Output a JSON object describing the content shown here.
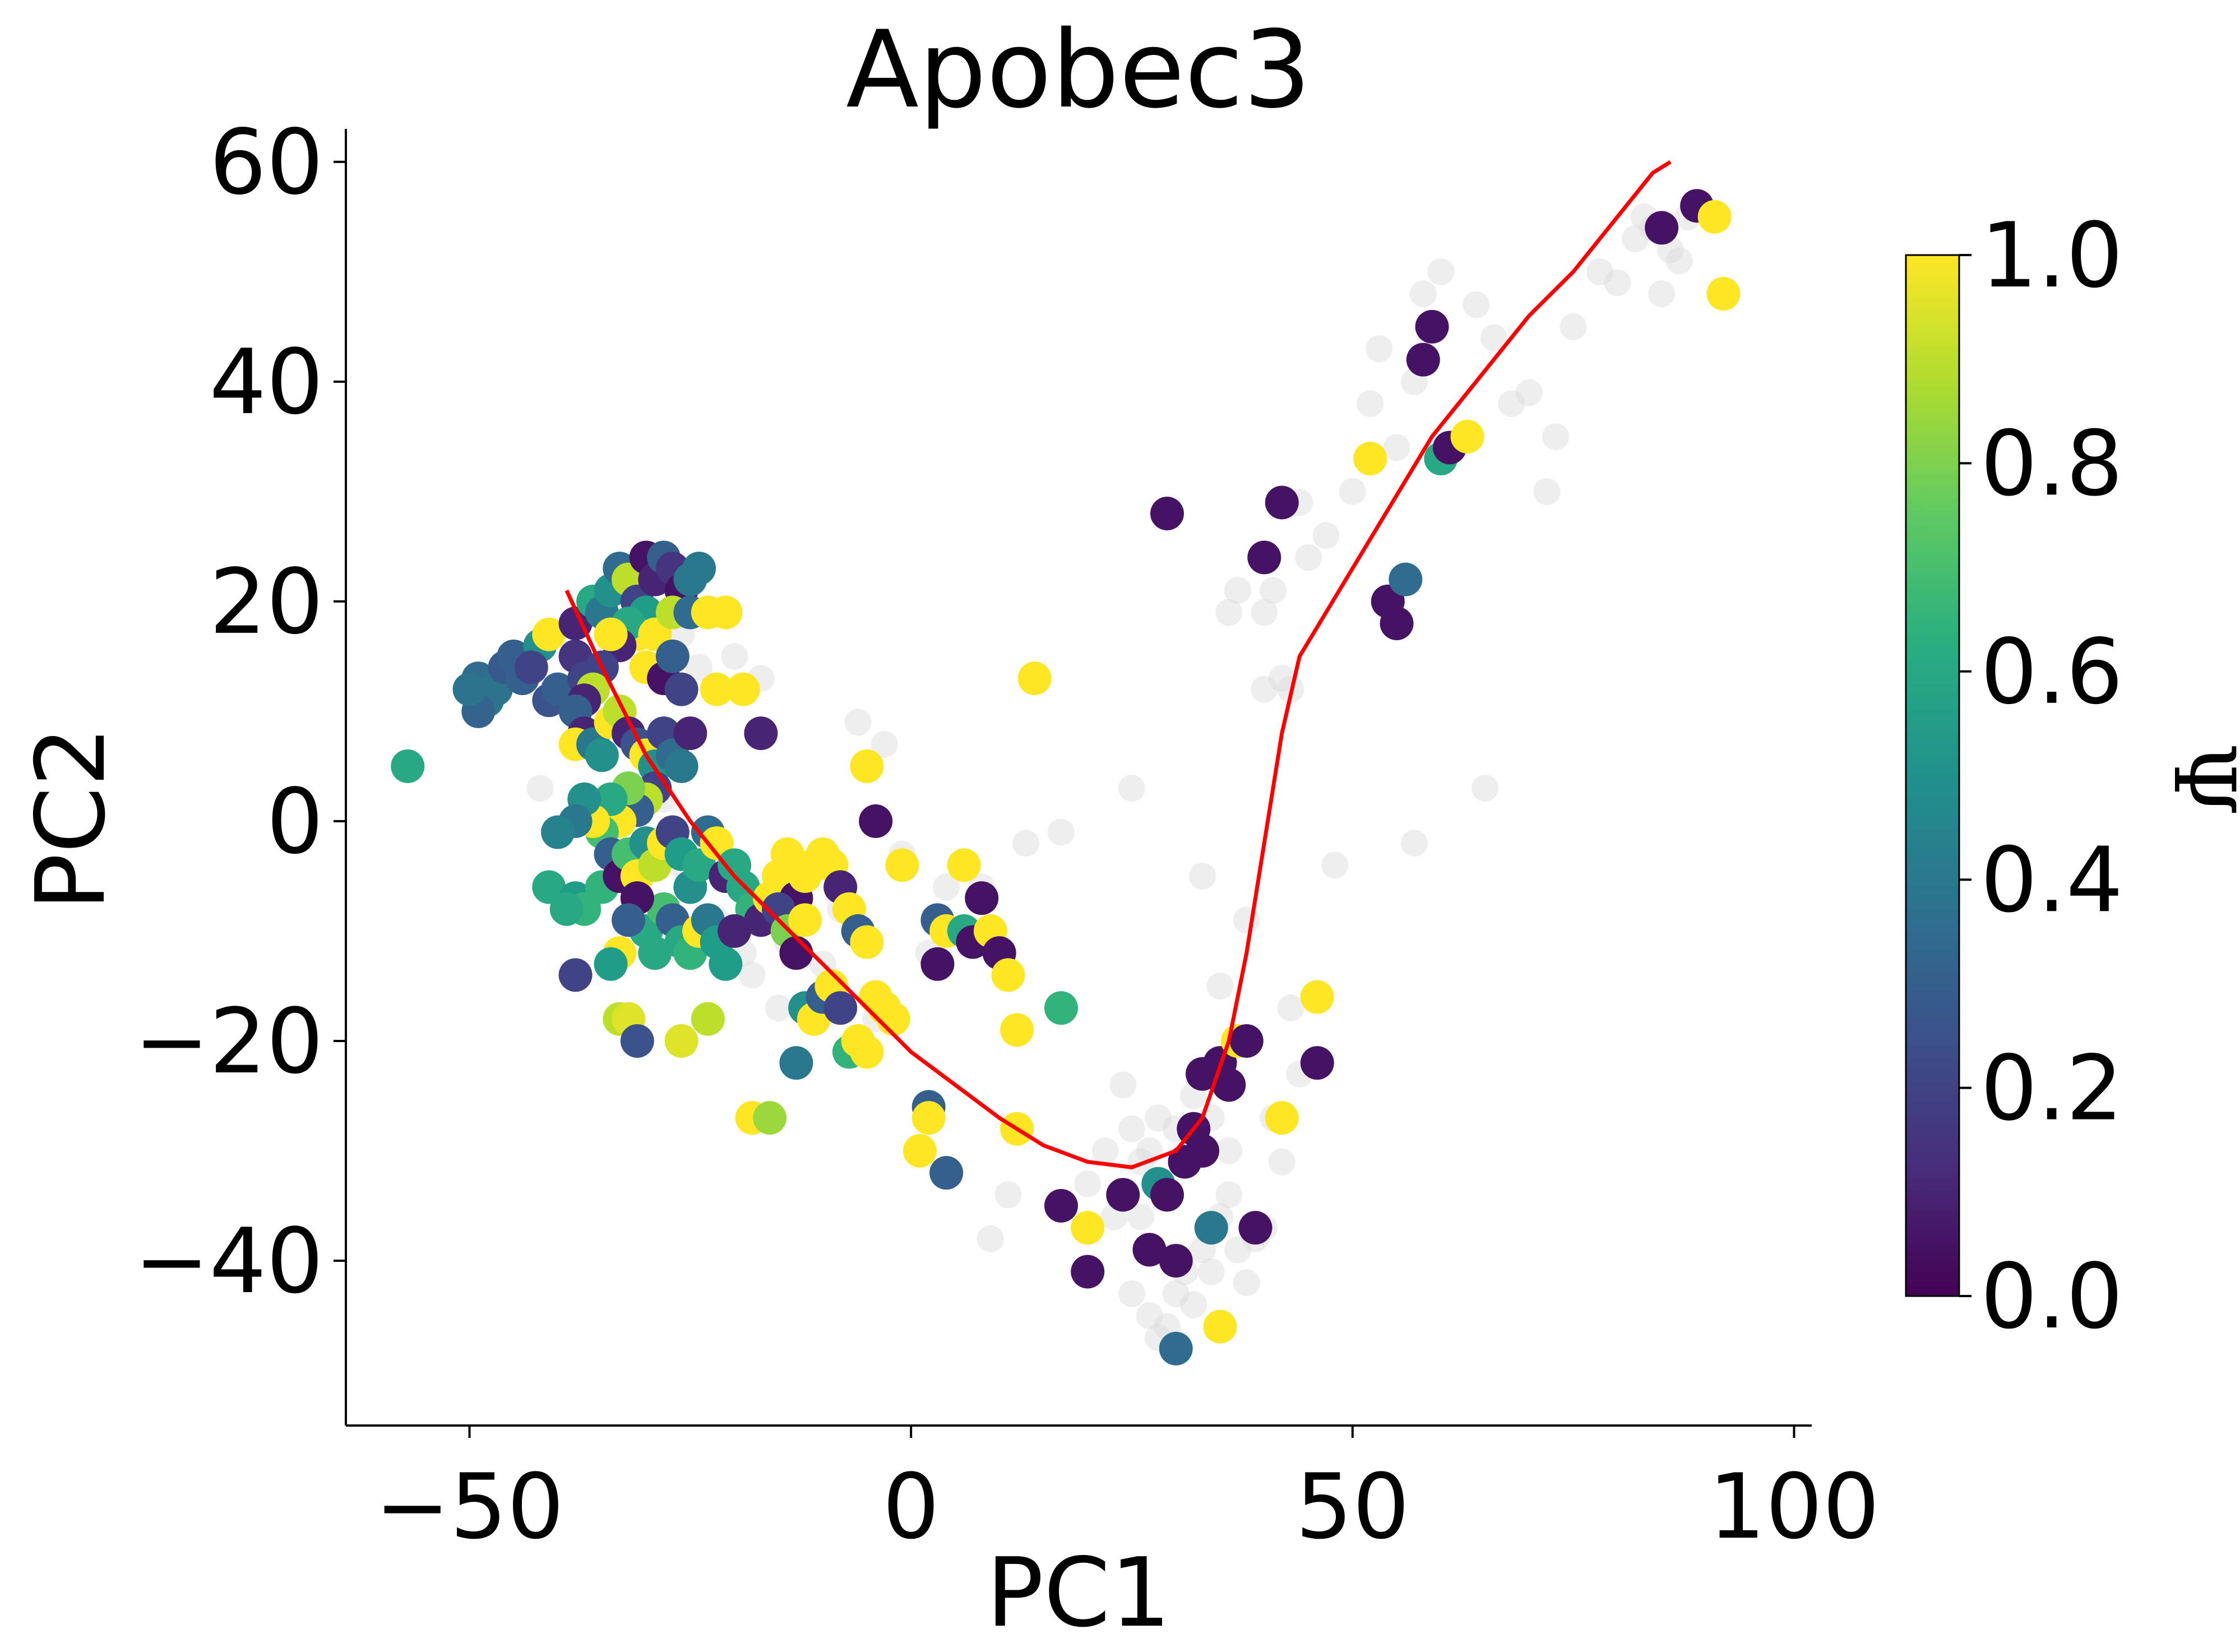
{
  "chart_data": {
    "type": "scatter",
    "title": "Apobec3",
    "xlabel": "PC1",
    "ylabel": "PC2",
    "xlim": [
      -64,
      102
    ],
    "ylim": [
      -55,
      63
    ],
    "xticks": [
      -50,
      0,
      50,
      100
    ],
    "xtick_labels": [
      "−50",
      "0",
      "50",
      "100"
    ],
    "yticks": [
      -40,
      -20,
      0,
      20,
      40,
      60
    ],
    "ytick_labels": [
      "−40",
      "−20",
      "0",
      "20",
      "40",
      "60"
    ],
    "grid": false,
    "colormap": "viridis",
    "colorbar": {
      "label": "Ψ",
      "range": [
        0,
        1
      ],
      "ticks": [
        0.0,
        0.2,
        0.4,
        0.6,
        0.8,
        1.0
      ],
      "tick_labels": [
        "0.0",
        "0.2",
        "0.4",
        "0.6",
        "0.8",
        "1.0"
      ]
    },
    "background_points_color": "#d9d9d9",
    "background_points": [
      [
        -34,
        16
      ],
      [
        -26,
        17
      ],
      [
        -24,
        14
      ],
      [
        -20,
        15
      ],
      [
        -17,
        13
      ],
      [
        -6,
        9
      ],
      [
        -3,
        7
      ],
      [
        -26,
        -4
      ],
      [
        -22,
        -9
      ],
      [
        -18,
        -14
      ],
      [
        -14,
        -11
      ],
      [
        -10,
        -13
      ],
      [
        -4,
        -18
      ],
      [
        2,
        -12
      ],
      [
        4,
        -6
      ],
      [
        8,
        -6
      ],
      [
        13,
        -2
      ],
      [
        17,
        -1
      ],
      [
        25,
        3
      ],
      [
        33,
        -5
      ],
      [
        35,
        -15
      ],
      [
        38,
        -9
      ],
      [
        41,
        -27
      ],
      [
        43,
        -17
      ],
      [
        48,
        -4
      ],
      [
        57,
        -2
      ],
      [
        65,
        3
      ],
      [
        36,
        19
      ],
      [
        37,
        21
      ],
      [
        40,
        19
      ],
      [
        41,
        21
      ],
      [
        42,
        13
      ],
      [
        43,
        12
      ],
      [
        40,
        12
      ],
      [
        45,
        24
      ],
      [
        47,
        26
      ],
      [
        44,
        29
      ],
      [
        50,
        30
      ],
      [
        52,
        38
      ],
      [
        53,
        43
      ],
      [
        55,
        34
      ],
      [
        57,
        40
      ],
      [
        58,
        48
      ],
      [
        60,
        50
      ],
      [
        64,
        47
      ],
      [
        66,
        44
      ],
      [
        68,
        38
      ],
      [
        70,
        39
      ],
      [
        72,
        30
      ],
      [
        73,
        35
      ],
      [
        75,
        45
      ],
      [
        78,
        50
      ],
      [
        80,
        49
      ],
      [
        82,
        53
      ],
      [
        83,
        55
      ],
      [
        84,
        54
      ],
      [
        85,
        48
      ],
      [
        86,
        52
      ],
      [
        87,
        51
      ],
      [
        88,
        55
      ],
      [
        24,
        -24
      ],
      [
        25,
        -28
      ],
      [
        26,
        -31
      ],
      [
        27,
        -30
      ],
      [
        28,
        -27
      ],
      [
        23,
        -36
      ],
      [
        25,
        -43
      ],
      [
        27,
        -45
      ],
      [
        28,
        -47
      ],
      [
        29,
        -46
      ],
      [
        30,
        -43
      ],
      [
        31,
        -41
      ],
      [
        32,
        -44
      ],
      [
        33,
        -39
      ],
      [
        34,
        -41
      ],
      [
        35,
        -36
      ],
      [
        36,
        -34
      ],
      [
        37,
        -39
      ],
      [
        38,
        -42
      ],
      [
        39,
        -38
      ],
      [
        36,
        -30
      ],
      [
        34,
        -27
      ],
      [
        32,
        -25
      ],
      [
        30,
        -28
      ],
      [
        29,
        -34
      ],
      [
        26,
        -36
      ],
      [
        40,
        -37
      ],
      [
        42,
        -31
      ],
      [
        44,
        -23
      ],
      [
        22,
        -30
      ],
      [
        20,
        -33
      ],
      [
        9,
        -38
      ],
      [
        11,
        -34
      ],
      [
        -15,
        -17
      ],
      [
        -19,
        -12
      ],
      [
        -8,
        -8
      ],
      [
        -1,
        -3
      ],
      [
        -40,
        -1
      ],
      [
        -42,
        3
      ],
      [
        -28,
        2
      ]
    ],
    "points": [
      [
        -57,
        5,
        0.6
      ],
      [
        -49,
        13,
        0.35
      ],
      [
        -48,
        11,
        0.4
      ],
      [
        -47,
        12,
        0.38
      ],
      [
        -49,
        10,
        0.32
      ],
      [
        -50,
        12,
        0.38
      ],
      [
        -46,
        14,
        0.28
      ],
      [
        -45,
        15,
        0.3
      ],
      [
        -44,
        13,
        0.3
      ],
      [
        -42,
        16,
        0.5
      ],
      [
        -41,
        17,
        1.0
      ],
      [
        -43,
        14,
        0.2
      ],
      [
        -41,
        11,
        0.25
      ],
      [
        -40,
        12,
        0.3
      ],
      [
        -38,
        15,
        0.15
      ],
      [
        -37,
        13,
        0.2
      ],
      [
        -38,
        18,
        0.1
      ],
      [
        -36,
        20,
        0.6
      ],
      [
        -35,
        19,
        0.4
      ],
      [
        -34,
        21,
        0.5
      ],
      [
        -33,
        23,
        0.35
      ],
      [
        -32,
        22,
        0.9
      ],
      [
        -31,
        20,
        0.2
      ],
      [
        -30,
        24,
        0.05
      ],
      [
        -29,
        22,
        0.1
      ],
      [
        -28,
        24,
        0.3
      ],
      [
        -27,
        23,
        0.15
      ],
      [
        -26,
        21,
        0.05
      ],
      [
        -25,
        22,
        0.4
      ],
      [
        -24,
        23,
        0.4
      ],
      [
        -30,
        19,
        0.55
      ],
      [
        -31,
        17,
        1.0
      ],
      [
        -32,
        18,
        0.6
      ],
      [
        -33,
        16,
        0.1
      ],
      [
        -34,
        17,
        1.0
      ],
      [
        -35,
        14,
        0.2
      ],
      [
        -36,
        12,
        0.9
      ],
      [
        -37,
        11,
        0.1
      ],
      [
        -38,
        10,
        0.3
      ],
      [
        -37,
        8,
        0.1
      ],
      [
        -38,
        7,
        1.0
      ],
      [
        -36,
        7,
        0.4
      ],
      [
        -35,
        6,
        0.5
      ],
      [
        -34,
        9,
        1.0
      ],
      [
        -33,
        10,
        0.9
      ],
      [
        -32,
        8,
        0.1
      ],
      [
        -31,
        7,
        0.25
      ],
      [
        -30,
        6,
        1.0
      ],
      [
        -29,
        5,
        0.5
      ],
      [
        -28,
        8,
        0.2
      ],
      [
        -27,
        6,
        0.35
      ],
      [
        -26,
        5,
        0.4
      ],
      [
        -25,
        8,
        0.1
      ],
      [
        -29,
        3,
        0.2
      ],
      [
        -30,
        2,
        0.9
      ],
      [
        -31,
        1,
        0.3
      ],
      [
        -32,
        3,
        0.8
      ],
      [
        -33,
        0,
        1.0
      ],
      [
        -34,
        2,
        0.6
      ],
      [
        -35,
        -1,
        0.7
      ],
      [
        -36,
        0,
        1.0
      ],
      [
        -37,
        2,
        0.5
      ],
      [
        -38,
        0,
        0.4
      ],
      [
        -40,
        -1,
        0.45
      ],
      [
        -41,
        -6,
        0.6
      ],
      [
        -38,
        -7,
        0.55
      ],
      [
        -37,
        -8,
        0.65
      ],
      [
        -35,
        -6,
        0.65
      ],
      [
        -34,
        -3,
        0.3
      ],
      [
        -33,
        -5,
        0.05
      ],
      [
        -32,
        -3,
        0.7
      ],
      [
        -31,
        -5,
        1.0
      ],
      [
        -30,
        -2,
        0.5
      ],
      [
        -29,
        -4,
        0.9
      ],
      [
        -28,
        -2,
        1.0
      ],
      [
        -27,
        -1,
        0.2
      ],
      [
        -26,
        -3,
        0.55
      ],
      [
        -25,
        -6,
        0.5
      ],
      [
        -24,
        -4,
        0.6
      ],
      [
        -23,
        -1,
        0.35
      ],
      [
        -22,
        -2,
        1.0
      ],
      [
        -21,
        -5,
        0.1
      ],
      [
        -20,
        -4,
        0.6
      ],
      [
        -19,
        -6,
        0.6
      ],
      [
        -18,
        -8,
        0.65
      ],
      [
        -17,
        -9,
        0.1
      ],
      [
        -16,
        -7,
        1.0
      ],
      [
        -15,
        -5,
        1.0
      ],
      [
        -14,
        -3,
        1.0
      ],
      [
        -13,
        -7,
        0.05
      ],
      [
        -12,
        -5,
        1.0
      ],
      [
        -11,
        -4,
        1.0
      ],
      [
        -10,
        -3,
        1.0
      ],
      [
        -9,
        -4,
        1.0
      ],
      [
        -8,
        -6,
        0.1
      ],
      [
        -7,
        -8,
        1.0
      ],
      [
        -30,
        -10,
        0.6
      ],
      [
        -29,
        -12,
        0.6
      ],
      [
        -28,
        -8,
        0.7
      ],
      [
        -27,
        -9,
        0.3
      ],
      [
        -26,
        -11,
        0.6
      ],
      [
        -25,
        -12,
        0.65
      ],
      [
        -24,
        -10,
        1.0
      ],
      [
        -23,
        -9,
        0.4
      ],
      [
        -22,
        -11,
        0.55
      ],
      [
        -21,
        -13,
        0.55
      ],
      [
        -20,
        -10,
        0.1
      ],
      [
        -31,
        -7,
        0.05
      ],
      [
        -32,
        -9,
        0.3
      ],
      [
        -33,
        -12,
        1.0
      ],
      [
        -34,
        -13,
        0.55
      ],
      [
        -39,
        -8,
        0.6
      ],
      [
        -38,
        -14,
        0.2
      ],
      [
        -33,
        -18,
        0.9
      ],
      [
        -32,
        -18,
        0.95
      ],
      [
        -31,
        -20,
        0.25
      ],
      [
        -26,
        -20,
        0.95
      ],
      [
        -23,
        -18,
        0.9
      ],
      [
        -18,
        -27,
        1.0
      ],
      [
        -16,
        -27,
        0.85
      ],
      [
        -13,
        -22,
        0.4
      ],
      [
        -12,
        -17,
        0.5
      ],
      [
        -11,
        -18,
        1.0
      ],
      [
        -10,
        -16,
        0.3
      ],
      [
        -9,
        -15,
        1.0
      ],
      [
        -8,
        -17,
        0.2
      ],
      [
        -7,
        -21,
        0.65
      ],
      [
        -6,
        -20,
        1.0
      ],
      [
        -5,
        -21,
        1.0
      ],
      [
        -4,
        -16,
        1.0
      ],
      [
        -3,
        -17,
        1.0
      ],
      [
        -2,
        -18,
        1.0
      ],
      [
        -15,
        -8,
        0.2
      ],
      [
        -14,
        -10,
        0.8
      ],
      [
        -13,
        -12,
        0.05
      ],
      [
        -12,
        -9,
        1.0
      ],
      [
        -6,
        -10,
        0.3
      ],
      [
        -5,
        -11,
        1.0
      ],
      [
        3,
        -9,
        0.3
      ],
      [
        4,
        -10,
        1.0
      ],
      [
        6,
        -10,
        0.6
      ],
      [
        7,
        -11,
        0.05
      ],
      [
        8,
        -7,
        0.05
      ],
      [
        9,
        -10,
        1.0
      ],
      [
        10,
        -12,
        0.05
      ],
      [
        3,
        -13,
        0.05
      ],
      [
        6,
        -4,
        1.0
      ],
      [
        11,
        -14,
        1.0
      ],
      [
        12,
        -19,
        1.0
      ],
      [
        12,
        -28,
        1.0
      ],
      [
        2,
        -26,
        0.3
      ],
      [
        2,
        -27,
        1.0
      ],
      [
        1,
        -30,
        1.0
      ],
      [
        4,
        -32,
        0.3
      ],
      [
        17,
        -17,
        0.65
      ],
      [
        17,
        -35,
        0.05
      ],
      [
        -19,
        12,
        1.0
      ],
      [
        -21,
        19,
        1.0
      ],
      [
        -17,
        8,
        0.1
      ],
      [
        -5,
        5,
        1.0
      ],
      [
        -4,
        0,
        0.05
      ],
      [
        -1,
        -4,
        1.0
      ],
      [
        14,
        13,
        1.0
      ],
      [
        20,
        -37,
        1.0
      ],
      [
        20,
        -41,
        0.05
      ],
      [
        24,
        -34,
        0.05
      ],
      [
        27,
        -39,
        0.05
      ],
      [
        28,
        -33,
        0.5
      ],
      [
        29,
        -34,
        0.05
      ],
      [
        30,
        -40,
        0.05
      ],
      [
        31,
        -31,
        0.05
      ],
      [
        32,
        -28,
        0.05
      ],
      [
        33,
        -30,
        0.05
      ],
      [
        30,
        -48,
        0.35
      ],
      [
        34,
        -37,
        0.4
      ],
      [
        35,
        -46,
        1.0
      ],
      [
        33,
        -23,
        0.05
      ],
      [
        35,
        -22,
        0.05
      ],
      [
        36,
        -24,
        0.05
      ],
      [
        37,
        -20,
        1.0
      ],
      [
        38,
        -20,
        0.05
      ],
      [
        39,
        -37,
        0.05
      ],
      [
        42,
        -27,
        1.0
      ],
      [
        46,
        -16,
        1.0
      ],
      [
        46,
        -22,
        0.05
      ],
      [
        29,
        28,
        0.05
      ],
      [
        40,
        24,
        0.05
      ],
      [
        42,
        29,
        0.05
      ],
      [
        52,
        33,
        1.0
      ],
      [
        54,
        20,
        0.05
      ],
      [
        55,
        18,
        0.05
      ],
      [
        56,
        22,
        0.35
      ],
      [
        58,
        42,
        0.05
      ],
      [
        59,
        45,
        0.05
      ],
      [
        60,
        33,
        0.6
      ],
      [
        61,
        34,
        0.05
      ],
      [
        63,
        35,
        1.0
      ],
      [
        85,
        54,
        0.05
      ],
      [
        89,
        56,
        0.05
      ],
      [
        91,
        55,
        1.0
      ],
      [
        92,
        48,
        1.0
      ],
      [
        -30,
        14,
        1.0
      ],
      [
        -29,
        17,
        1.0
      ],
      [
        -27,
        19,
        0.9
      ],
      [
        -25,
        19,
        0.35
      ],
      [
        -23,
        19,
        1.0
      ],
      [
        -22,
        12,
        1.0
      ],
      [
        -28,
        13,
        0.05
      ],
      [
        -26,
        12,
        0.2
      ],
      [
        -27,
        15,
        0.3
      ]
    ],
    "curve_color": "#ff0000",
    "curve": [
      [
        -39,
        21
      ],
      [
        -35,
        14
      ],
      [
        -30,
        6
      ],
      [
        -25,
        0
      ],
      [
        -20,
        -5
      ],
      [
        -15,
        -9
      ],
      [
        -10,
        -13
      ],
      [
        -5,
        -17
      ],
      [
        0,
        -21
      ],
      [
        5,
        -24
      ],
      [
        10,
        -27
      ],
      [
        15,
        -29.5
      ],
      [
        20,
        -31
      ],
      [
        25,
        -31.5
      ],
      [
        30,
        -30
      ],
      [
        33,
        -27
      ],
      [
        36,
        -20
      ],
      [
        38,
        -12
      ],
      [
        40,
        -2
      ],
      [
        42,
        8
      ],
      [
        44,
        15
      ],
      [
        47,
        19
      ],
      [
        50,
        23
      ],
      [
        53,
        27
      ],
      [
        56,
        31
      ],
      [
        59,
        35
      ],
      [
        62,
        38
      ],
      [
        66,
        42
      ],
      [
        70,
        46
      ],
      [
        75,
        50
      ],
      [
        80,
        55
      ],
      [
        84,
        59
      ],
      [
        86,
        60
      ]
    ]
  }
}
